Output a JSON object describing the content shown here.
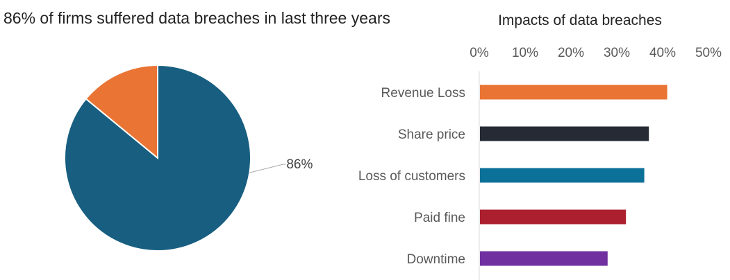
{
  "chart_data": [
    {
      "type": "pie",
      "title": "86% of firms suffered data breaches in last three years",
      "slices": [
        {
          "label": "86%",
          "value": 86,
          "color": "#175e80"
        },
        {
          "label": "",
          "value": 14,
          "color": "#e97434"
        }
      ]
    },
    {
      "type": "bar",
      "orientation": "horizontal",
      "title": "Impacts of data breaches",
      "categories": [
        "Revenue Loss",
        "Share price",
        "Loss of customers",
        "Paid fine",
        "Downtime"
      ],
      "values": [
        41,
        37,
        36,
        32,
        28
      ],
      "colors": [
        "#e97434",
        "#252a35",
        "#0c7199",
        "#ab1f2e",
        "#7030a0"
      ],
      "xlim": [
        0,
        50
      ],
      "xticks": [
        0,
        10,
        20,
        30,
        40,
        50
      ],
      "xtick_labels": [
        "0%",
        "10%",
        "20%",
        "30%",
        "40%",
        "50%"
      ],
      "xaxis_position": "top",
      "grid": false
    }
  ]
}
